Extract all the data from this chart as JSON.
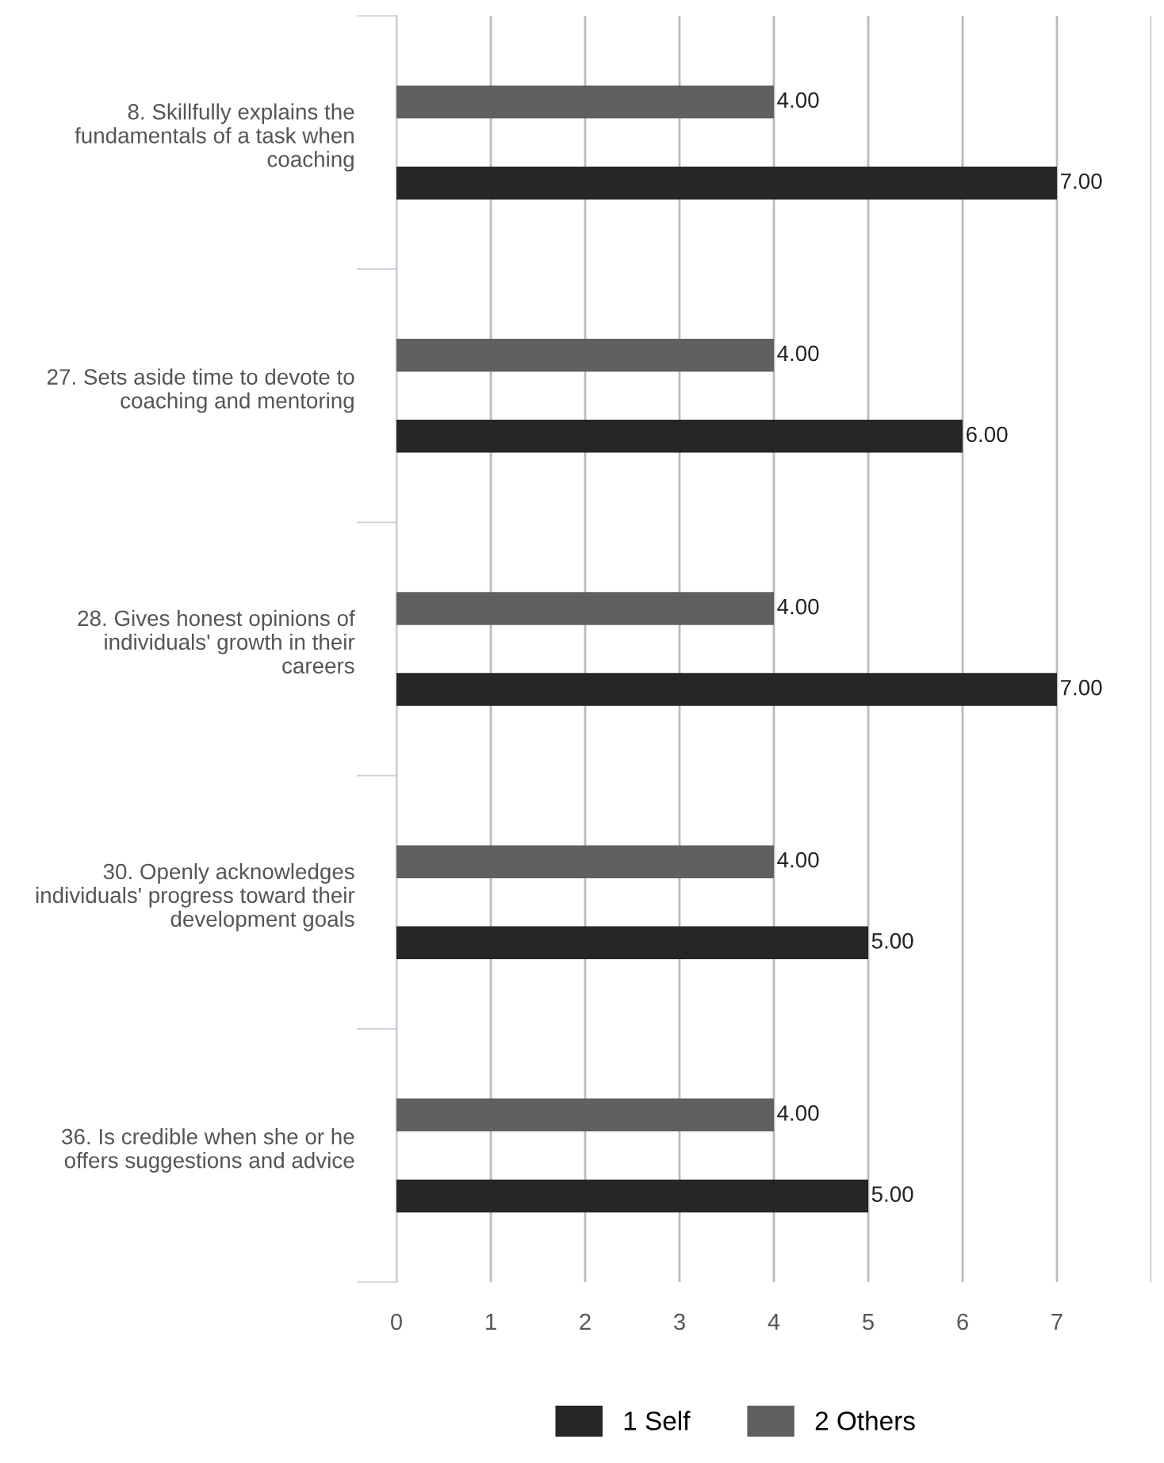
{
  "chart_data": {
    "type": "bar",
    "orientation": "horizontal",
    "categories": [
      "8. Skillfully explains the fundamentals of a task when coaching",
      "27. Sets aside time to devote to coaching and mentoring",
      "28. Gives honest opinions of individuals' growth in their careers",
      "30. Openly acknowledges individuals' progress toward their development goals",
      "36. Is credible when she or he offers suggestions and advice"
    ],
    "series": [
      {
        "name": "1 Self",
        "color": "#262626",
        "values": [
          7,
          6,
          7,
          5,
          5
        ],
        "value_labels": [
          "7.00",
          "6.00",
          "7.00",
          "5.00",
          "5.00"
        ]
      },
      {
        "name": "2 Others",
        "color": "#606060",
        "values": [
          4,
          4,
          4,
          4,
          4
        ],
        "value_labels": [
          "4.00",
          "4.00",
          "4.00",
          "4.00",
          "4.00"
        ]
      }
    ],
    "xlim": [
      0,
      8
    ],
    "xticks": [
      0,
      1,
      2,
      3,
      4,
      5,
      6,
      7,
      {
        "value": 8,
        "label": null
      }
    ],
    "grid": "x",
    "legend": "bottom"
  }
}
